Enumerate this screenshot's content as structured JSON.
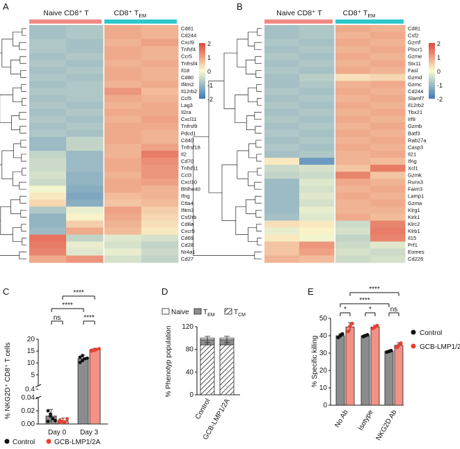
{
  "chart_data": [
    {
      "panel": "A",
      "type": "heatmap",
      "group_labels": [
        "Naive CD8⁺ T",
        "CD8⁺ T"
      ],
      "group_label_sub": "EM",
      "group_colors": [
        "#f08a84",
        "#2ec8cc"
      ],
      "color_scale": {
        "min": -2,
        "max": 2,
        "ticks": [
          "2",
          "1",
          "0",
          "-1",
          "-2"
        ],
        "low": "#3d7ab8",
        "mid": "#fbfbcf",
        "high": "#e0463a"
      },
      "genes": [
        "Cd81",
        "Cd244",
        "Cxcl9",
        "Tnfsf4",
        "Ccr5",
        "Tnfrsf4",
        "Il18",
        "Cd80",
        "Ifitm2",
        "Il12rb2",
        "Ccl5",
        "Lag3",
        "Il2ra",
        "Cxcl11",
        "Tnfrsf9",
        "Pdcd1",
        "Cd40",
        "Tnfrsf18",
        "Il2",
        "Cd70",
        "Tnfsf11",
        "Ccl3",
        "Cxcl10",
        "Bhlhe40",
        "Ifng",
        "Ctla4",
        "Ifitm3",
        "Csf2rb",
        "Cd8a",
        "Cxcr5",
        "Cd69",
        "Cd28",
        "Nr4a1",
        "Cd27"
      ],
      "matrix": [
        [
          -0.9,
          -0.8,
          0.9,
          0.8
        ],
        [
          -0.9,
          -0.8,
          0.9,
          0.8
        ],
        [
          -0.8,
          -0.9,
          0.8,
          1.0
        ],
        [
          -0.8,
          -0.9,
          0.9,
          0.8
        ],
        [
          -0.9,
          -0.8,
          0.9,
          0.8
        ],
        [
          -0.8,
          -0.9,
          0.8,
          0.9
        ],
        [
          -0.9,
          -0.8,
          0.9,
          0.8
        ],
        [
          -0.8,
          -0.9,
          0.9,
          0.8
        ],
        [
          -0.9,
          -0.8,
          0.8,
          0.9
        ],
        [
          -0.8,
          -0.8,
          1.1,
          0.7
        ],
        [
          -0.9,
          -0.8,
          0.9,
          0.8
        ],
        [
          -0.8,
          -0.9,
          0.8,
          0.9
        ],
        [
          -0.9,
          -0.8,
          0.9,
          0.9
        ],
        [
          -0.8,
          -0.9,
          0.8,
          1.0
        ],
        [
          -0.9,
          -0.8,
          0.9,
          0.9
        ],
        [
          -0.8,
          -0.9,
          0.9,
          0.8
        ],
        [
          -1.0,
          -0.6,
          0.9,
          0.8
        ],
        [
          -1.0,
          -0.6,
          0.8,
          1.0
        ],
        [
          -0.6,
          -1.0,
          0.8,
          1.4
        ],
        [
          -0.5,
          -1.0,
          0.9,
          1.2
        ],
        [
          -0.5,
          -1.0,
          0.9,
          1.1
        ],
        [
          -0.4,
          -1.1,
          0.8,
          1.1
        ],
        [
          -0.5,
          -1.1,
          0.9,
          1.0
        ],
        [
          -0.1,
          -1.2,
          0.9,
          0.8
        ],
        [
          0.2,
          -1.3,
          0.7,
          0.8
        ],
        [
          0.4,
          -1.2,
          0.6,
          0.7
        ],
        [
          -0.8,
          -0.2,
          1.0,
          0.5
        ],
        [
          -1.1,
          0.1,
          0.9,
          0.4
        ],
        [
          -1.1,
          0.5,
          0.8,
          0.3
        ],
        [
          -1.0,
          0.9,
          0.7,
          0.2
        ],
        [
          1.5,
          -0.6,
          -0.3,
          -0.4
        ],
        [
          1.4,
          -0.2,
          -0.4,
          -0.6
        ],
        [
          1.3,
          -0.3,
          -0.2,
          -0.5
        ],
        [
          0.9,
          1.1,
          -0.4,
          -0.6
        ]
      ]
    },
    {
      "panel": "B",
      "type": "heatmap",
      "group_labels": [
        "Naive CD8⁺ T",
        "CD8⁺ T"
      ],
      "group_label_sub": "EM",
      "group_colors": [
        "#f08a84",
        "#2ec8cc"
      ],
      "color_scale": {
        "min": -2,
        "max": 2,
        "ticks": [
          "2",
          "1",
          "0",
          "-1",
          "-2"
        ],
        "low": "#3d7ab8",
        "mid": "#fbfbcf",
        "high": "#e0463a"
      },
      "genes": [
        "Cd81",
        "Csf2",
        "Gzmf",
        "Plscr1",
        "Gzme",
        "Stx11",
        "Fasl",
        "Gzmd",
        "Gzmc",
        "Cd244",
        "Slamf7",
        "Il12rb2",
        "Tbx21",
        "Irf8",
        "Gzmb",
        "Batf3",
        "Rab27a",
        "Casp3",
        "Il21",
        "Ifng",
        "Xcl1",
        "Gzmk",
        "Runx3",
        "Faim3",
        "Lamp1",
        "Gzma",
        "Klrg1",
        "Kirk1",
        "Klrc2",
        "Klrb1",
        "Il15",
        "Prf1",
        "Eomes",
        "Cd226"
      ],
      "matrix": [
        [
          -0.9,
          -0.8,
          0.9,
          0.8
        ],
        [
          -0.9,
          -0.8,
          0.8,
          0.9
        ],
        [
          -0.8,
          -0.9,
          0.9,
          0.8
        ],
        [
          -0.9,
          -0.8,
          0.8,
          0.9
        ],
        [
          -0.8,
          -0.9,
          0.9,
          0.8
        ],
        [
          -0.9,
          -0.8,
          0.8,
          0.9
        ],
        [
          -0.8,
          -0.9,
          0.9,
          0.8
        ],
        [
          -0.9,
          -0.7,
          0.3,
          0.4
        ],
        [
          -0.9,
          -0.8,
          0.8,
          0.9
        ],
        [
          -0.8,
          -0.9,
          0.9,
          0.8
        ],
        [
          -0.9,
          -0.8,
          0.8,
          0.9
        ],
        [
          -0.8,
          -0.9,
          0.9,
          0.8
        ],
        [
          -0.9,
          -0.8,
          0.8,
          0.9
        ],
        [
          -0.8,
          -0.9,
          0.9,
          0.8
        ],
        [
          -0.9,
          -0.8,
          0.8,
          0.9
        ],
        [
          -0.8,
          -0.9,
          0.9,
          0.8
        ],
        [
          -0.9,
          -0.8,
          0.8,
          0.9
        ],
        [
          -0.8,
          -0.9,
          0.9,
          0.8
        ],
        [
          -0.9,
          -0.8,
          0.8,
          0.9
        ],
        [
          0.2,
          -1.5,
          0.8,
          0.7
        ],
        [
          -0.5,
          -0.4,
          0.6,
          1.4
        ],
        [
          -0.6,
          -0.5,
          1.3,
          0.6
        ],
        [
          -1.0,
          -0.3,
          0.9,
          0.8
        ],
        [
          -1.0,
          -0.4,
          0.8,
          0.9
        ],
        [
          -1.0,
          -0.3,
          0.9,
          0.8
        ],
        [
          -1.0,
          -0.4,
          0.8,
          0.9
        ],
        [
          -1.0,
          -0.2,
          0.8,
          0.8
        ],
        [
          -0.9,
          -0.3,
          0.9,
          0.7
        ],
        [
          0.3,
          0.2,
          -0.5,
          1.3
        ],
        [
          -0.2,
          0.1,
          -0.4,
          1.4
        ],
        [
          0.2,
          -0.1,
          -0.6,
          1.3
        ],
        [
          0.6,
          1.1,
          -0.5,
          -0.3
        ],
        [
          0.6,
          1.0,
          -0.4,
          -0.5
        ],
        [
          0.8,
          0.7,
          -0.5,
          -0.4
        ]
      ]
    },
    {
      "panel": "C",
      "type": "bar",
      "categories": [
        "Day 0",
        "Day 3"
      ],
      "series": [
        {
          "name": "Control",
          "color": "#111111",
          "means": [
            0.012,
            11.8
          ],
          "errors": [
            0.01,
            1.5
          ],
          "points": [
            [
              0.02,
              0.012,
              0.008,
              0.005,
              0.004,
              0.015
            ],
            [
              10.2,
              11.0,
              11.8,
              12.0,
              12.4,
              13.1
            ]
          ]
        },
        {
          "name": "GCB-LMP1/2A",
          "color": "#e8402d",
          "means": [
            0.005,
            15.6
          ],
          "errors": [
            0.004,
            0.6
          ],
          "points": [
            [
              0.006,
              0.004,
              0.003,
              0.008,
              0.002
            ],
            [
              15.0,
              15.3,
              15.7,
              16.0,
              15.4
            ]
          ]
        }
      ],
      "ylabel": "% NKG2D⁺ CD8⁺ T cells",
      "y_upper": {
        "range": [
          0.4,
          20
        ],
        "ticks": [
          "20",
          "15",
          "10",
          "5"
        ]
      },
      "y_lower": {
        "range": [
          0,
          0.04
        ],
        "ticks": [
          "0.04",
          "0.02",
          "0.00"
        ]
      },
      "y_break_label": "0.4",
      "significance": [
        "ns",
        "****",
        "****",
        "****"
      ],
      "legend": [
        "Control",
        "GCB-LMP1/2A"
      ]
    },
    {
      "panel": "D",
      "type": "bar",
      "stacked": true,
      "categories": [
        "Control",
        "GCB-LMP1/2A"
      ],
      "series": [
        {
          "name": "T",
          "sub": "CM",
          "values": [
            88,
            88
          ]
        },
        {
          "name": "T",
          "sub": "EM",
          "values": [
            9,
            9
          ]
        },
        {
          "name": "Naive",
          "values": [
            3,
            3
          ]
        }
      ],
      "errors": {
        "T_CM": 4,
        "T_EM_top": 3
      },
      "legend": [
        "Naive",
        "T",
        "EM",
        "T",
        "CM"
      ],
      "ylabel": "% Phenotyp population",
      "ylim": [
        0,
        120
      ],
      "yticks": [
        "120",
        "80",
        "40",
        "0"
      ]
    },
    {
      "panel": "E",
      "type": "bar",
      "categories": [
        "No Ab",
        "Isotype",
        "NKG2D Ab"
      ],
      "series": [
        {
          "name": "Control",
          "color": "#111111",
          "values": [
            40,
            40,
            31
          ],
          "errors": [
            1.2,
            0.7,
            0.5
          ],
          "points": [
            [
              39,
              40,
              41
            ],
            [
              39.5,
              40,
              40.5
            ],
            [
              30.6,
              31,
              31.4
            ]
          ]
        },
        {
          "name": "GCB-LMP1/2A",
          "color": "#e8402d",
          "values": [
            45,
            45,
            34.5
          ],
          "errors": [
            2.5,
            1.0,
            1.5
          ],
          "points": [
            [
              42.5,
              45.5,
              47
            ],
            [
              44.2,
              45,
              45.8
            ],
            [
              33.3,
              34.5,
              35.7
            ]
          ]
        }
      ],
      "ylabel": "% Specific killing",
      "ylim": [
        0,
        50
      ],
      "yticks": [
        "50",
        "40",
        "30",
        "20",
        "10",
        "0"
      ],
      "significance": [
        "*",
        "*",
        "ns",
        "****",
        "****"
      ],
      "legend": [
        "Control",
        "GCB-LMP1/2A"
      ]
    }
  ],
  "panel_letters": [
    "A",
    "B",
    "C",
    "D",
    "E"
  ]
}
